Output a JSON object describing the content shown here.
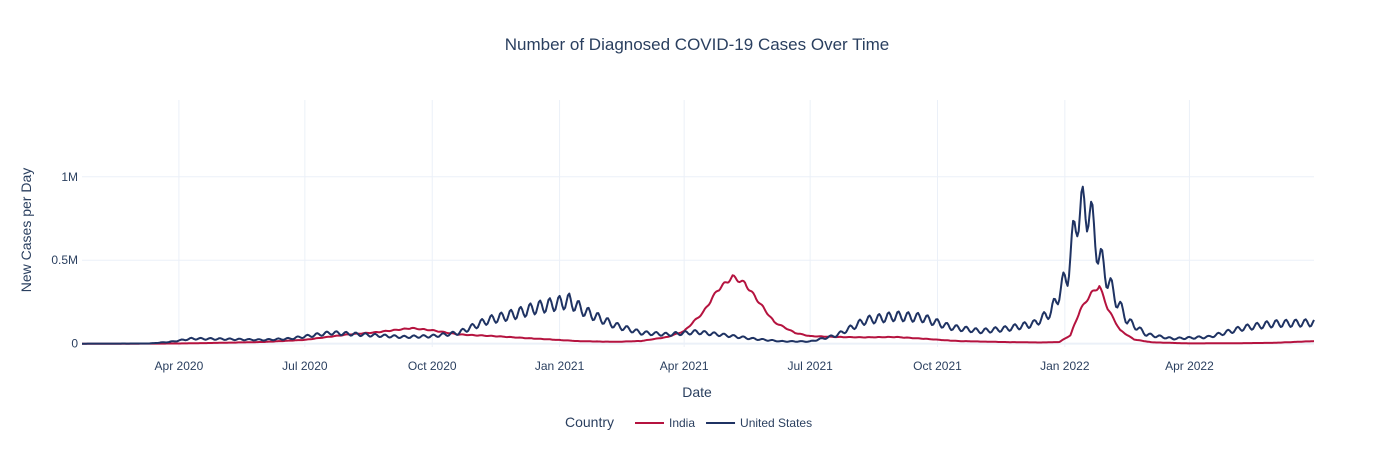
{
  "chart_data": {
    "type": "line",
    "title": "Number of Diagnosed COVID-19 Cases Over Time",
    "xlabel": "Date",
    "ylabel": "New Cases per Day",
    "legend_title": "Country",
    "legend_placement": "bottom-center",
    "grid": true,
    "xlim": [
      "2020-01-22",
      "2022-06-30"
    ],
    "ylim": [
      -20000,
      1460000
    ],
    "x_ticks": [
      {
        "date": "2020-04-01",
        "label": "Apr 2020"
      },
      {
        "date": "2020-07-01",
        "label": "Jul 2020"
      },
      {
        "date": "2020-10-01",
        "label": "Oct 2020"
      },
      {
        "date": "2021-01-01",
        "label": "Jan 2021"
      },
      {
        "date": "2021-04-01",
        "label": "Apr 2021"
      },
      {
        "date": "2021-07-01",
        "label": "Jul 2021"
      },
      {
        "date": "2021-10-01",
        "label": "Oct 2021"
      },
      {
        "date": "2022-01-01",
        "label": "Jan 2022"
      },
      {
        "date": "2022-04-01",
        "label": "Apr 2022"
      }
    ],
    "y_ticks": [
      {
        "value": 0,
        "label": "0"
      },
      {
        "value": 500000,
        "label": "0.5M"
      },
      {
        "value": 1000000,
        "label": "1M"
      }
    ],
    "series": [
      {
        "name": "India",
        "color": "#b5133f",
        "oscillation": 0.03,
        "x": [
          "2020-01-22",
          "2020-03-01",
          "2020-04-01",
          "2020-05-01",
          "2020-06-01",
          "2020-07-01",
          "2020-08-01",
          "2020-08-20",
          "2020-09-16",
          "2020-10-01",
          "2020-10-20",
          "2020-11-15",
          "2020-12-15",
          "2021-01-15",
          "2021-02-10",
          "2021-03-01",
          "2021-03-20",
          "2021-04-01",
          "2021-04-15",
          "2021-04-25",
          "2021-05-06",
          "2021-05-15",
          "2021-05-25",
          "2021-06-05",
          "2021-06-20",
          "2021-07-01",
          "2021-07-20",
          "2021-08-10",
          "2021-09-01",
          "2021-09-20",
          "2021-10-15",
          "2021-11-15",
          "2021-12-15",
          "2021-12-28",
          "2022-01-05",
          "2022-01-12",
          "2022-01-20",
          "2022-01-26",
          "2022-02-01",
          "2022-02-10",
          "2022-02-20",
          "2022-03-05",
          "2022-04-01",
          "2022-05-01",
          "2022-06-01",
          "2022-06-30"
        ],
        "y": [
          0,
          0,
          1000,
          5000,
          10000,
          23000,
          55000,
          67000,
          93000,
          80000,
          55000,
          45000,
          30000,
          15000,
          11000,
          16000,
          40000,
          75000,
          190000,
          320000,
          400000,
          360000,
          250000,
          130000,
          65000,
          45000,
          40000,
          38000,
          40000,
          30000,
          16000,
          10000,
          7000,
          10000,
          50000,
          200000,
          300000,
          345000,
          210000,
          80000,
          25000,
          8000,
          1500,
          2500,
          5000,
          15000
        ]
      },
      {
        "name": "United States",
        "color": "#1f3363",
        "oscillation": 0.18,
        "x": [
          "2020-01-22",
          "2020-03-10",
          "2020-03-25",
          "2020-04-10",
          "2020-05-01",
          "2020-06-01",
          "2020-06-20",
          "2020-07-20",
          "2020-08-10",
          "2020-09-10",
          "2020-10-01",
          "2020-10-20",
          "2020-11-10",
          "2020-12-01",
          "2020-12-15",
          "2021-01-08",
          "2021-01-20",
          "2021-02-10",
          "2021-03-01",
          "2021-03-20",
          "2021-04-10",
          "2021-05-01",
          "2021-05-20",
          "2021-06-10",
          "2021-07-01",
          "2021-07-20",
          "2021-08-10",
          "2021-09-01",
          "2021-09-20",
          "2021-10-10",
          "2021-11-01",
          "2021-11-20",
          "2021-12-10",
          "2021-12-22",
          "2022-01-03",
          "2022-01-10",
          "2022-01-18",
          "2022-01-26",
          "2022-02-05",
          "2022-02-15",
          "2022-03-01",
          "2022-03-20",
          "2022-04-15",
          "2022-05-10",
          "2022-06-01",
          "2022-06-30"
        ],
        "y": [
          0,
          1000,
          10000,
          30000,
          28000,
          22000,
          30000,
          65000,
          55000,
          40000,
          45000,
          65000,
          140000,
          180000,
          215000,
          255000,
          190000,
          110000,
          65000,
          55000,
          70000,
          50000,
          30000,
          14000,
          13000,
          50000,
          140000,
          165000,
          155000,
          100000,
          75000,
          90000,
          120000,
          190000,
          420000,
          780000,
          820000,
          520000,
          300000,
          140000,
          55000,
          30000,
          40000,
          95000,
          120000,
          125000
        ]
      }
    ]
  }
}
